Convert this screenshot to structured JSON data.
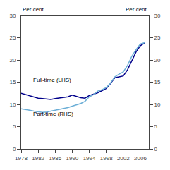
{
  "chart_data": {
    "type": "line",
    "x": [
      1978,
      1979,
      1980,
      1981,
      1982,
      1983,
      1984,
      1985,
      1986,
      1987,
      1988,
      1989,
      1990,
      1991,
      1992,
      1993,
      1994,
      1995,
      1996,
      1997,
      1998,
      1999,
      2000,
      2001,
      2002,
      2003,
      2004,
      2005,
      2006,
      2007
    ],
    "series": [
      {
        "name": "Full-time (LHS)",
        "color": "#00008B",
        "axis": "y",
        "values": [
          12.5,
          12.2,
          11.9,
          11.6,
          11.4,
          11.3,
          11.2,
          11.1,
          11.3,
          11.4,
          11.5,
          11.7,
          12.1,
          11.8,
          11.5,
          11.4,
          12.0,
          12.3,
          12.6,
          13.1,
          13.6,
          14.7,
          16.0,
          16.2,
          16.4,
          17.8,
          19.8,
          21.8,
          23.2,
          23.8
        ]
      },
      {
        "name": "Part-time (RHS)",
        "color": "#6baed6",
        "axis": "y2",
        "values": [
          9.0,
          8.9,
          8.7,
          8.5,
          8.3,
          8.2,
          8.3,
          8.5,
          8.7,
          8.8,
          9.0,
          9.3,
          9.6,
          9.9,
          10.2,
          10.7,
          11.7,
          12.2,
          13.0,
          13.3,
          13.8,
          14.8,
          16.2,
          16.8,
          17.3,
          18.8,
          20.8,
          22.3,
          23.6,
          23.9
        ]
      }
    ],
    "xlim": [
      1978,
      2008
    ],
    "xticks": [
      1978,
      1982,
      1986,
      1990,
      1994,
      1998,
      2002,
      2006
    ],
    "ylim": [
      0,
      30
    ],
    "yticks": [
      0,
      5,
      10,
      15,
      20,
      25,
      30
    ],
    "y2lim": [
      0,
      30
    ],
    "y2ticks": [
      0,
      5,
      10,
      15,
      20,
      25,
      30
    ],
    "ylabel": "Per cent",
    "y2label": "Per cent",
    "annotations": [
      {
        "text": "Full-time (LHS)",
        "x": 1980.5,
        "y": 14.5
      },
      {
        "text": "Part-time (RHS)",
        "x": 1980.5,
        "y": 6.8
      }
    ],
    "grid": false
  }
}
